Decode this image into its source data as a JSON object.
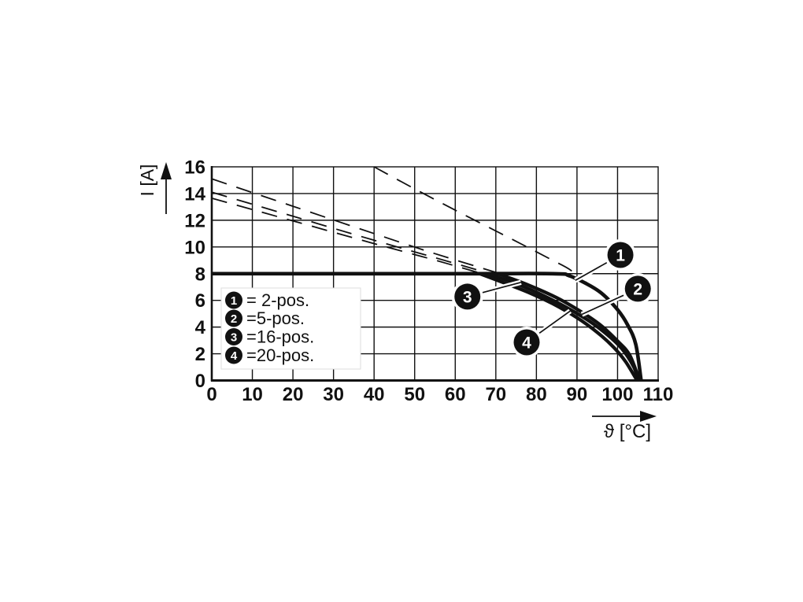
{
  "chart_data": {
    "type": "line",
    "title": "",
    "xlabel": "ϑ [°C]",
    "ylabel": "I [A]",
    "xlim": [
      0,
      110
    ],
    "ylim": [
      0,
      16
    ],
    "xticks": [
      0,
      10,
      20,
      30,
      40,
      50,
      60,
      70,
      80,
      90,
      100,
      110
    ],
    "yticks": [
      0,
      2,
      4,
      6,
      8,
      10,
      12,
      14,
      16
    ],
    "grid": true,
    "legend_position": "lower-left",
    "colors": {
      "line": "#111111",
      "background": "#ffffff",
      "badge_fill": "#111111",
      "badge_text": "#ffffff",
      "legend_border": "#dddddd"
    },
    "legend": [
      {
        "badge": "1",
        "label": "= 2-pos."
      },
      {
        "badge": "2",
        "label": "=5-pos."
      },
      {
        "badge": "3",
        "label": "=16-pos."
      },
      {
        "badge": "4",
        "label": "=20-pos."
      }
    ],
    "series": [
      {
        "name": "2-pos-dashed",
        "style": "dashed",
        "points": [
          [
            40,
            16
          ],
          [
            50,
            14.35
          ],
          [
            60,
            12.75
          ],
          [
            70,
            11.2
          ],
          [
            78,
            9.95
          ],
          [
            84,
            9.0
          ],
          [
            88,
            8.35
          ],
          [
            91,
            7.6
          ]
        ]
      },
      {
        "name": "5-pos-dashed",
        "style": "dashed",
        "points": [
          [
            0,
            15.1
          ],
          [
            20,
            13.05
          ],
          [
            40,
            11.0
          ],
          [
            55,
            9.5
          ],
          [
            70.5,
            8.05
          ]
        ]
      },
      {
        "name": "16-pos-dashed",
        "style": "dashed",
        "points": [
          [
            0,
            14.1
          ],
          [
            20,
            12.3
          ],
          [
            40,
            10.5
          ],
          [
            55,
            9.2
          ],
          [
            68,
            8.05
          ]
        ]
      },
      {
        "name": "20-pos-dashed",
        "style": "dashed",
        "points": [
          [
            0,
            13.65
          ],
          [
            20,
            11.95
          ],
          [
            40,
            10.25
          ],
          [
            54,
            9.1
          ],
          [
            66,
            8.05
          ]
        ]
      },
      {
        "name": "2-pos",
        "style": "solid",
        "width": 4.6,
        "points": [
          [
            0,
            8
          ],
          [
            60,
            8
          ],
          [
            84,
            8
          ],
          [
            88,
            7.85
          ],
          [
            92,
            7.3
          ],
          [
            96,
            6.55
          ],
          [
            100,
            5.3
          ],
          [
            102.5,
            4.15
          ],
          [
            104.5,
            2.7
          ],
          [
            105.8,
            0
          ]
        ]
      },
      {
        "name": "5-pos",
        "style": "solid",
        "points": [
          [
            70.5,
            8
          ],
          [
            78,
            7.15
          ],
          [
            85,
            6.2
          ],
          [
            91,
            5.15
          ],
          [
            96,
            4.1
          ],
          [
            100,
            2.95
          ],
          [
            103,
            1.9
          ],
          [
            105.4,
            0
          ]
        ]
      },
      {
        "name": "16-pos",
        "style": "solid",
        "points": [
          [
            68,
            8
          ],
          [
            75,
            7.25
          ],
          [
            80,
            6.6
          ],
          [
            86,
            5.7
          ],
          [
            92,
            4.65
          ],
          [
            97,
            3.55
          ],
          [
            101,
            2.4
          ],
          [
            104,
            1.0
          ],
          [
            105.1,
            0
          ]
        ]
      },
      {
        "name": "20-pos",
        "style": "solid",
        "points": [
          [
            66,
            8
          ],
          [
            73,
            7.2
          ],
          [
            78,
            6.6
          ],
          [
            84,
            5.75
          ],
          [
            90,
            4.7
          ],
          [
            95,
            3.6
          ],
          [
            99,
            2.5
          ],
          [
            102,
            1.4
          ],
          [
            104.8,
            0
          ]
        ]
      }
    ],
    "badges": [
      {
        "label": "1",
        "x": 100.7,
        "y": 9.4,
        "leader_to": [
          89.6,
          7.5
        ]
      },
      {
        "label": "2",
        "x": 105.0,
        "y": 6.87,
        "leader_to": [
          91.2,
          4.95
        ]
      },
      {
        "label": "3",
        "x": 63.0,
        "y": 6.28,
        "leader_to": [
          76.2,
          7.35
        ]
      },
      {
        "label": "4",
        "x": 77.6,
        "y": 2.86,
        "leader_to": [
          88.3,
          5.2
        ]
      }
    ]
  }
}
